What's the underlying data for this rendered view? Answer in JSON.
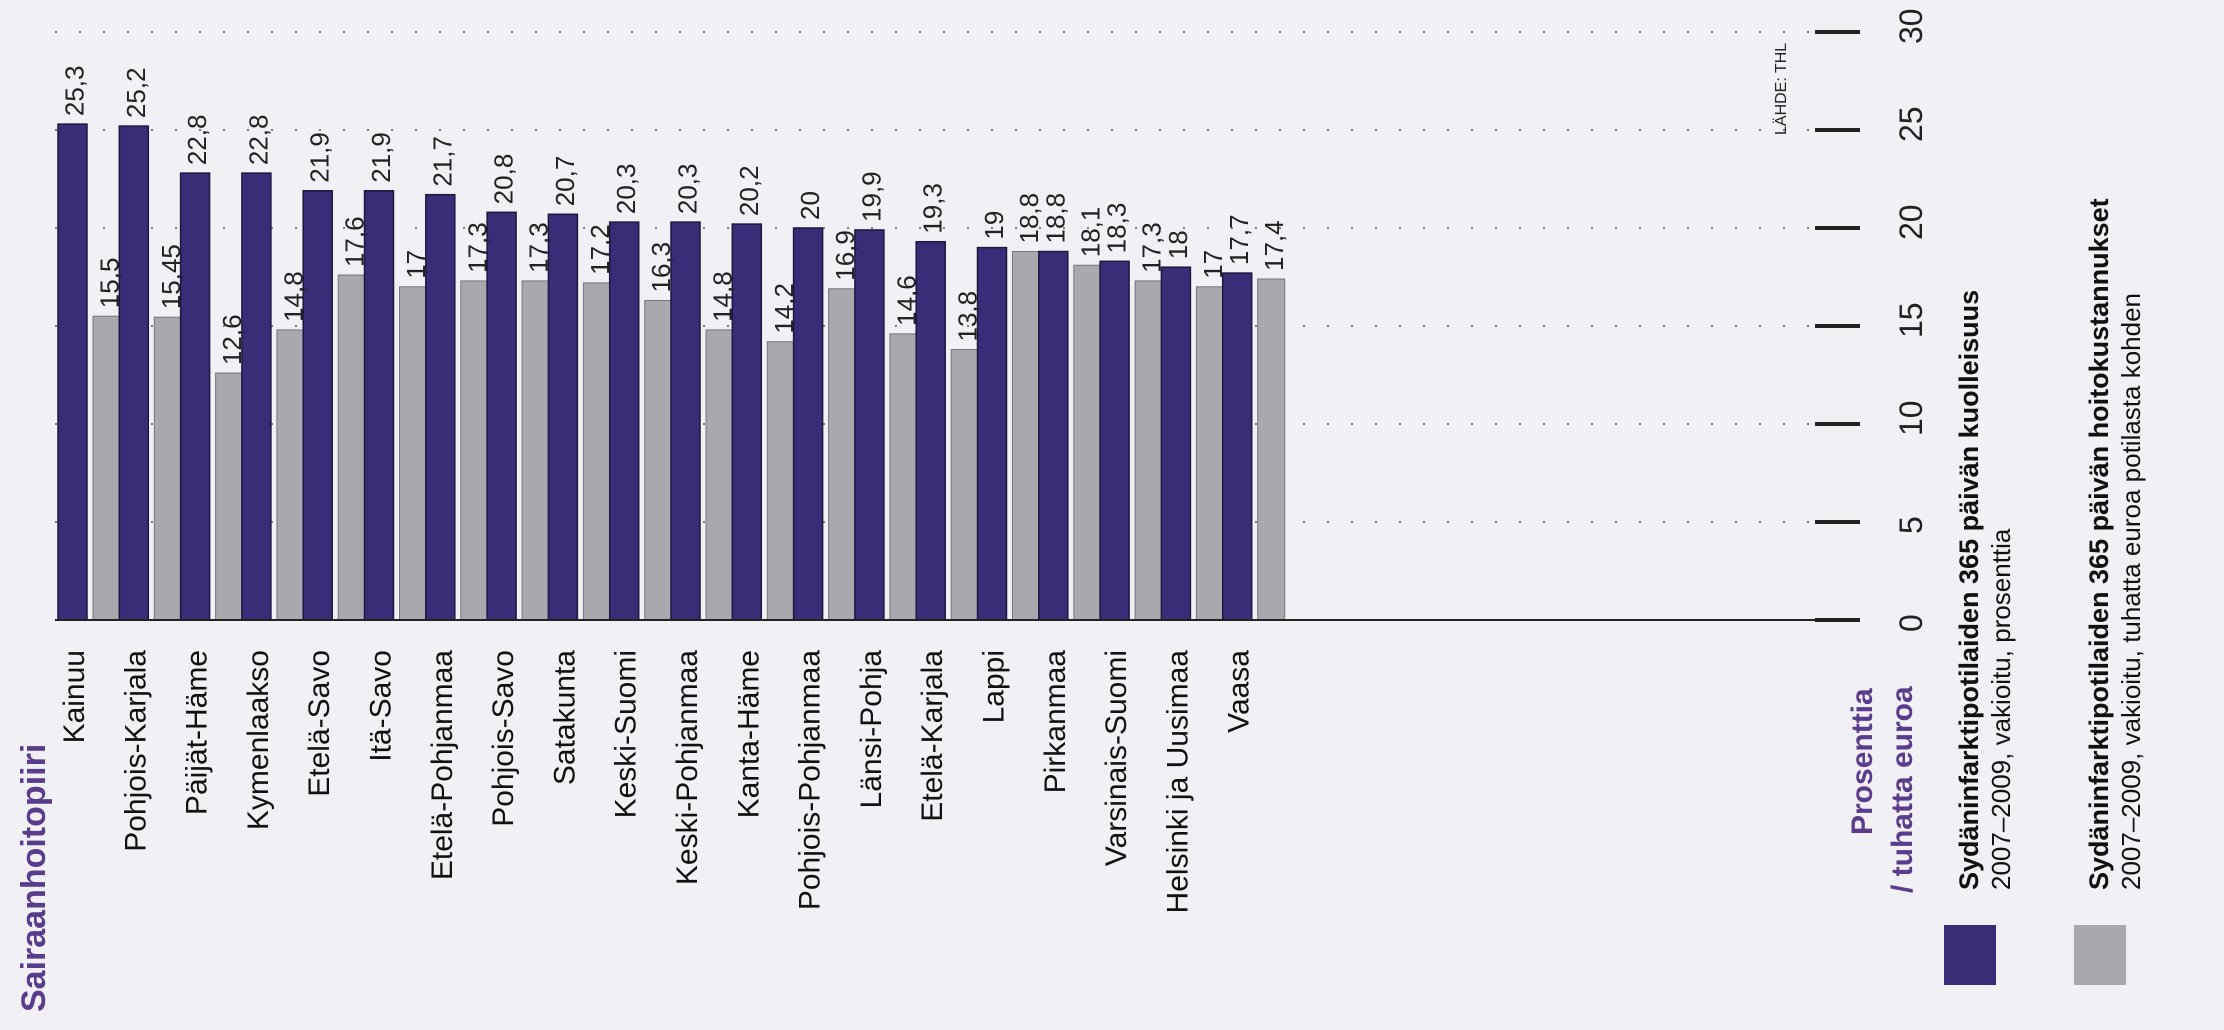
{
  "chart_data": {
    "type": "bar",
    "orientation": "rotated-90-ccw",
    "title": "Sairaanhoitopiiri",
    "axis_unit_label": [
      "Prosenttia",
      "/ tuhatta euroa"
    ],
    "source": "LÄHDE: THL",
    "ylim": [
      0,
      30
    ],
    "ticks": [
      0,
      5,
      10,
      15,
      20,
      25,
      30
    ],
    "grid": true,
    "legend_position": "bottom",
    "categories": [
      "Kainuu",
      "Pohjois-Karjala",
      "Päijät-Häme",
      "Kymenlaakso",
      "Etelä-Savo",
      "Itä-Savo",
      "Etelä-Pohjanmaa",
      "Pohjois-Savo",
      "Satakunta",
      "Keski-Suomi",
      "Keski-Pohjanmaa",
      "Kanta-Häme",
      "Pohjois-Pohjanmaa",
      "Länsi-Pohja",
      "Etelä-Karjala",
      "Lappi",
      "Pirkanmaa",
      "Varsinais-Suomi",
      "Helsinki ja Uusimaa",
      "Vaasa"
    ],
    "series": [
      {
        "name": "Sydäninfarktipotilaiden 365 päivän kuolleisuus",
        "subtitle": "2007–2009, vakioitu, prosenttia",
        "color": "#3a2d78",
        "values": [
          25.3,
          25.2,
          22.8,
          22.8,
          21.9,
          21.9,
          21.7,
          20.8,
          20.7,
          20.3,
          20.3,
          20.2,
          20,
          19.9,
          19.3,
          19,
          18.8,
          18.3,
          18,
          17.7
        ],
        "labels": [
          "25,3",
          "25,2",
          "22,8",
          "22,8",
          "21,9",
          "21,9",
          "21,7",
          "20,8",
          "20,7",
          "20,3",
          "20,3",
          "20,2",
          "20",
          "19,9",
          "19,3",
          "19",
          "18,8",
          "18,3",
          "18",
          "17,7"
        ]
      },
      {
        "name": "Sydäninfarktipotilaiden 365 päivän hoitokustannukset",
        "subtitle": "2007–2009, vakioitu, tuhatta euroa potilasta kohden",
        "color": "#a9a8ae",
        "values": [
          15.5,
          15.45,
          12.6,
          14.8,
          17.6,
          17,
          17.3,
          17.3,
          17.2,
          16.3,
          14.8,
          14.2,
          16.9,
          14.6,
          13.8,
          18.8,
          18.1,
          17.3,
          17,
          17.4
        ],
        "labels": [
          "15,5",
          "15,45",
          "12,6",
          "14,8",
          "17,6",
          "17",
          "17,3",
          "17,3",
          "17,2",
          "16,3",
          "14,8",
          "14,2",
          "16,9",
          "14,6",
          "13,8",
          "18,8",
          "18,1",
          "17,3",
          "17",
          "17,4"
        ]
      }
    ]
  },
  "colors": {
    "title": "#5a3c8c",
    "bg": "#f1f0f4"
  }
}
